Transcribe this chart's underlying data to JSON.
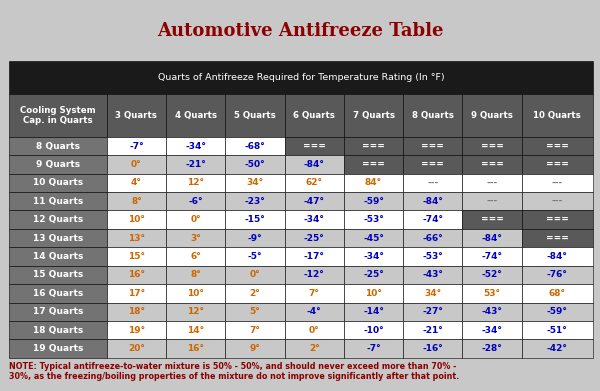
{
  "title": "Automotive Antifreeze Table",
  "subtitle": "Quarts of Antifreeze Required for Temperature Rating (In °F)",
  "note": "NOTE: Typical antifreeze-to-water mixture is 50% - 50%, and should never exceed more than 70% -\n30%, as the freezing/boiling properties of the mixture do not improve significantly after that point.",
  "col_header": [
    "Cooling System\nCap. in Quarts",
    "3 Quarts",
    "4 Quarts",
    "5 Quarts",
    "6 Quarts",
    "7 Quarts",
    "8 Quarts",
    "9 Quarts",
    "10 Quarts"
  ],
  "rows": [
    [
      "8 Quarts",
      "-7°",
      "-34°",
      "-68°",
      "===",
      "===",
      "===",
      "===",
      "==="
    ],
    [
      "9 Quarts",
      "0°",
      "-21°",
      "-50°",
      "-84°",
      "===",
      "===",
      "===",
      "==="
    ],
    [
      "10 Quarts",
      "4°",
      "12°",
      "34°",
      "62°",
      "84°",
      "---",
      "---",
      "---"
    ],
    [
      "11 Quarts",
      "8°",
      "-6°",
      "-23°",
      "-47°",
      "-59°",
      "-84°",
      "---",
      "---"
    ],
    [
      "12 Quarts",
      "10°",
      "0°",
      "-15°",
      "-34°",
      "-53°",
      "-74°",
      "===",
      "==="
    ],
    [
      "13 Quarts",
      "13°",
      "3°",
      "-9°",
      "-25°",
      "-45°",
      "-66°",
      "-84°",
      "==="
    ],
    [
      "14 Quarts",
      "15°",
      "6°",
      "-5°",
      "-17°",
      "-34°",
      "-53°",
      "-74°",
      "-84°"
    ],
    [
      "15 Quarts",
      "16°",
      "8°",
      "0°",
      "-12°",
      "-25°",
      "-43°",
      "-52°",
      "-76°"
    ],
    [
      "16 Quarts",
      "17°",
      "10°",
      "2°",
      "7°",
      "10°",
      "34°",
      "53°",
      "68°"
    ],
    [
      "17 Quarts",
      "18°",
      "12°",
      "5°",
      "-4°",
      "-14°",
      "-27°",
      "-43°",
      "-59°"
    ],
    [
      "18 Quarts",
      "19°",
      "14°",
      "7°",
      "0°",
      "-10°",
      "-21°",
      "-34°",
      "-51°"
    ],
    [
      "19 Quarts",
      "20°",
      "16°",
      "9°",
      "2°",
      "-7°",
      "-16°",
      "-28°",
      "-42°"
    ]
  ],
  "title_color": "#8B0000",
  "header_bg": "#1a1a1a",
  "header_text_color": "#ffffff",
  "subheader_bg": "#595959",
  "subheader_text_color": "#ffffff",
  "row_bg_odd": "#ffffff",
  "row_bg_even": "#c8c8c8",
  "row_label_bg": "#737373",
  "row_label_text": "#ffffff",
  "data_text_color_blue": "#0000bb",
  "data_text_color_orange": "#cc6600",
  "special_text_color": "#ffffff",
  "bg_color": "#c8c8c8",
  "note_color": "#8B0000",
  "border_color": "#000000"
}
